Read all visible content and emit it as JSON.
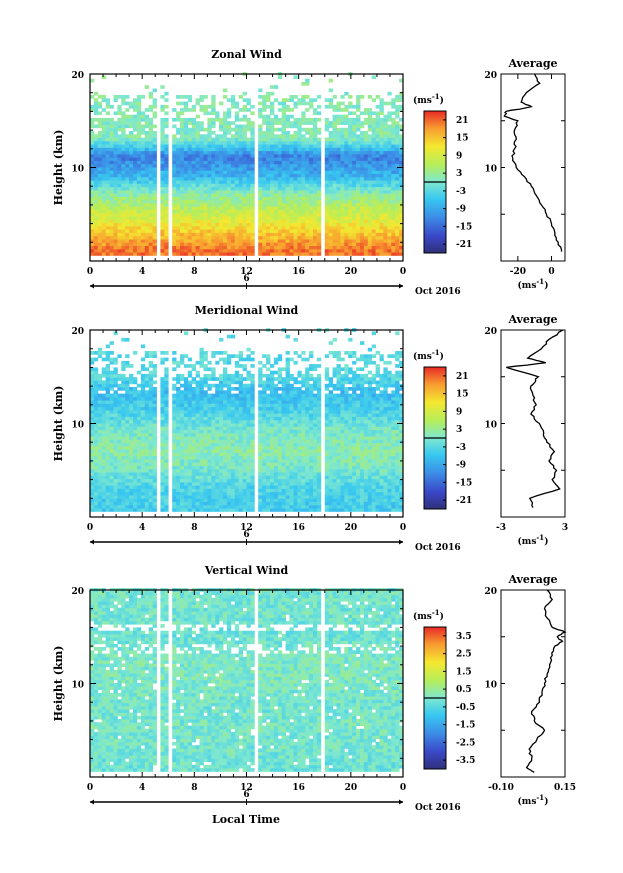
{
  "chart_data": [
    {
      "type": "heatmap",
      "title": "Zonal Wind",
      "ylabel": "Height (km)",
      "ylim": [
        0,
        20
      ],
      "yticks": [
        "10",
        "20"
      ],
      "xlim": [
        0,
        24
      ],
      "xticks": [
        "0",
        "4",
        "8",
        "12",
        "16",
        "20",
        "0"
      ],
      "date_marker": "6",
      "date_label": "Oct 2016",
      "colorbar": {
        "unit": "(ms",
        "unit_exp": "-1",
        "unit_close": ")",
        "ticks": [
          "21",
          "15",
          "9",
          "3",
          "-3",
          "-9",
          "-15",
          "-21"
        ],
        "range": [
          -24,
          24
        ]
      },
      "data_gaps_hours": [
        [
          5.1,
          5.5
        ],
        [
          5.9,
          6.2
        ],
        [
          12.7,
          13.0
        ],
        [
          17.6,
          17.9
        ]
      ],
      "profile_by_height_km": {
        "height": [
          1,
          3,
          5,
          7,
          9,
          11,
          13,
          15,
          17,
          19
        ],
        "value": [
          20,
          14,
          8,
          2,
          -8,
          -13,
          1,
          1,
          1,
          1
        ]
      },
      "average": {
        "title": "Average",
        "xlabel": "(ms",
        "xlabel_exp": "-1",
        "xlabel_close": ")",
        "xticks": [
          "-20",
          "0"
        ],
        "xlim": [
          -30,
          8
        ],
        "height_km": [
          1,
          2,
          3,
          4,
          5,
          6,
          7,
          8,
          9,
          10,
          11,
          12,
          13,
          14,
          15,
          15.5,
          16,
          16.5,
          17,
          18,
          19,
          20
        ],
        "wind": [
          6,
          4,
          2,
          0,
          -3,
          -6,
          -9,
          -12,
          -16,
          -21,
          -23,
          -22,
          -21,
          -22,
          -20,
          -28,
          -27,
          -12,
          -18,
          -15,
          -7,
          -10
        ]
      }
    },
    {
      "type": "heatmap",
      "title": "Meridional Wind",
      "ylabel": "Height (km)",
      "ylim": [
        0,
        20
      ],
      "yticks": [
        "10",
        "20"
      ],
      "xlim": [
        0,
        24
      ],
      "xticks": [
        "0",
        "4",
        "8",
        "12",
        "16",
        "20",
        "0"
      ],
      "date_marker": "6",
      "date_label": "Oct 2016",
      "colorbar": {
        "unit": "(ms",
        "unit_exp": "-1",
        "unit_close": ")",
        "ticks": [
          "21",
          "15",
          "9",
          "3",
          "-3",
          "-9",
          "-15",
          "-21"
        ],
        "range": [
          -24,
          24
        ]
      },
      "data_gaps_hours": [
        [
          5.1,
          5.5
        ],
        [
          5.9,
          6.2
        ],
        [
          12.7,
          13.0
        ],
        [
          17.6,
          17.9
        ]
      ],
      "profile_by_height_km": {
        "height": [
          1,
          3,
          5,
          7,
          9,
          11,
          13,
          15,
          17,
          19
        ],
        "value": [
          -5,
          -4,
          0,
          2,
          0,
          -4,
          -7,
          -3,
          -3,
          -3
        ]
      },
      "average": {
        "title": "Average",
        "xlabel": "(ms",
        "xlabel_exp": "-1",
        "xlabel_close": ")",
        "xticks": [
          "-3",
          "3"
        ],
        "xlim": [
          -3,
          3
        ],
        "height_km": [
          1,
          2,
          3,
          4,
          5,
          6,
          7,
          8,
          9,
          10,
          11,
          12,
          13,
          14,
          15,
          16,
          16.5,
          17,
          18,
          19,
          20
        ],
        "wind": [
          0,
          -0.3,
          2.5,
          1.8,
          2.2,
          1.5,
          2.0,
          1.3,
          1.0,
          0.6,
          -0.2,
          0.3,
          0.0,
          -0.2,
          0.5,
          -2.5,
          1.2,
          -0.5,
          0.8,
          1.5,
          2.8
        ]
      }
    },
    {
      "type": "heatmap",
      "title": "Vertical Wind",
      "ylabel": "Height (km)",
      "xlabel": "Local Time",
      "ylim": [
        0,
        20
      ],
      "yticks": [
        "10",
        "20"
      ],
      "xlim": [
        0,
        24
      ],
      "xticks": [
        "0",
        "4",
        "8",
        "12",
        "16",
        "20",
        "0"
      ],
      "date_marker": "6",
      "date_label": "Oct 2016",
      "colorbar": {
        "unit": "(ms",
        "unit_exp": "-1",
        "unit_close": ")",
        "ticks": [
          "3.5",
          "2.5",
          "1.5",
          "0.5",
          "-0.5",
          "-1.5",
          "-2.5",
          "-3.5"
        ],
        "range": [
          -4,
          4
        ]
      },
      "data_gaps_hours": [
        [
          5.1,
          5.5
        ],
        [
          5.9,
          6.2
        ],
        [
          12.7,
          13.0
        ],
        [
          17.6,
          17.9
        ]
      ],
      "profile_by_height_km": {
        "height": [
          1,
          3,
          5,
          7,
          9,
          11,
          13,
          15,
          17,
          19
        ],
        "value": [
          -0.2,
          -0.1,
          0,
          -0.1,
          0,
          0.1,
          0,
          -0.2,
          -0.1,
          -0.1
        ]
      },
      "average": {
        "title": "Average",
        "xlabel": "(ms",
        "xlabel_exp": "-1",
        "xlabel_close": ")",
        "xticks": [
          "-0.10",
          "0.15"
        ],
        "xlim": [
          -0.1,
          0.15
        ],
        "height_km": [
          0.5,
          1,
          2,
          3,
          4,
          5,
          6,
          7,
          8,
          9,
          10,
          11,
          12,
          13,
          14,
          14.5,
          15,
          15.5,
          16,
          17,
          18,
          19,
          20
        ],
        "wind": [
          0.03,
          0.0,
          0.02,
          0.01,
          0.04,
          0.07,
          0.03,
          0.02,
          0.05,
          0.06,
          0.07,
          0.08,
          0.09,
          0.1,
          0.11,
          0.14,
          0.12,
          0.15,
          0.1,
          0.08,
          0.07,
          0.1,
          0.08
        ]
      }
    }
  ]
}
